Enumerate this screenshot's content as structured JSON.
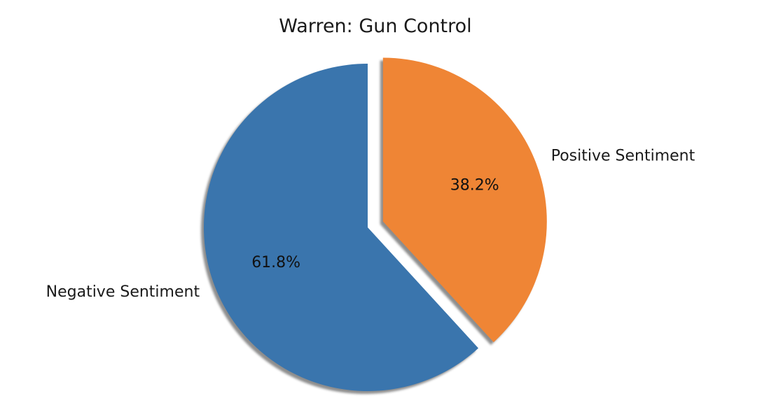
{
  "chart_data": {
    "type": "pie",
    "title": "Warren: Gun Control",
    "slices": [
      {
        "label": "Negative Sentiment",
        "value": 61.8,
        "pct_label": "61.8%",
        "color": "#3a75ad",
        "exploded": false
      },
      {
        "label": "Positive Sentiment",
        "value": 38.2,
        "pct_label": "38.2%",
        "color": "#ef8535",
        "exploded": true
      }
    ],
    "start_angle": "top (90°)",
    "direction": "counterclockwise",
    "shadow": true,
    "legend": "none"
  }
}
